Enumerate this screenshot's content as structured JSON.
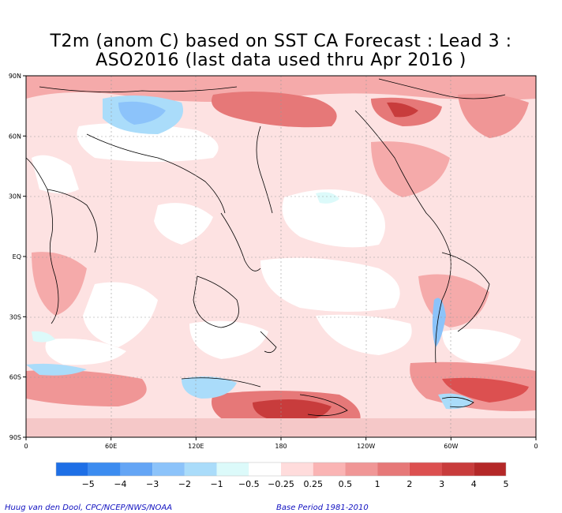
{
  "title": {
    "line1": "T2m (anom C) based on SST CA Forecast : Lead 3 :",
    "line2": "ASO2016 (last data used thru Apr 2016 )"
  },
  "axes": {
    "lat_labels": [
      "90N",
      "60N",
      "30N",
      "EQ",
      "30S",
      "60S",
      "90S"
    ],
    "lon_labels": [
      "0",
      "60E",
      "120E",
      "180",
      "120W",
      "60W",
      "0"
    ]
  },
  "colorbar": {
    "labels": [
      "−5",
      "−4",
      "−3",
      "−2",
      "−1",
      "−0.5",
      "−0.25",
      "0.25",
      "0.5",
      "1",
      "2",
      "3",
      "4",
      "5"
    ],
    "colors": [
      "#1e6fe6",
      "#3c8cf0",
      "#64a5f5",
      "#8cc3fa",
      "#aadcfa",
      "#dcfafa",
      "#ffffff",
      "#ffdcdc",
      "#fab4b4",
      "#f09696",
      "#e67878",
      "#dc5050",
      "#c83c3c",
      "#b42828"
    ]
  },
  "credits": {
    "left": "Huug van den Dool, CPC/NCEP/NWS/NOAA",
    "right": "Base Period 1981-2010"
  }
}
